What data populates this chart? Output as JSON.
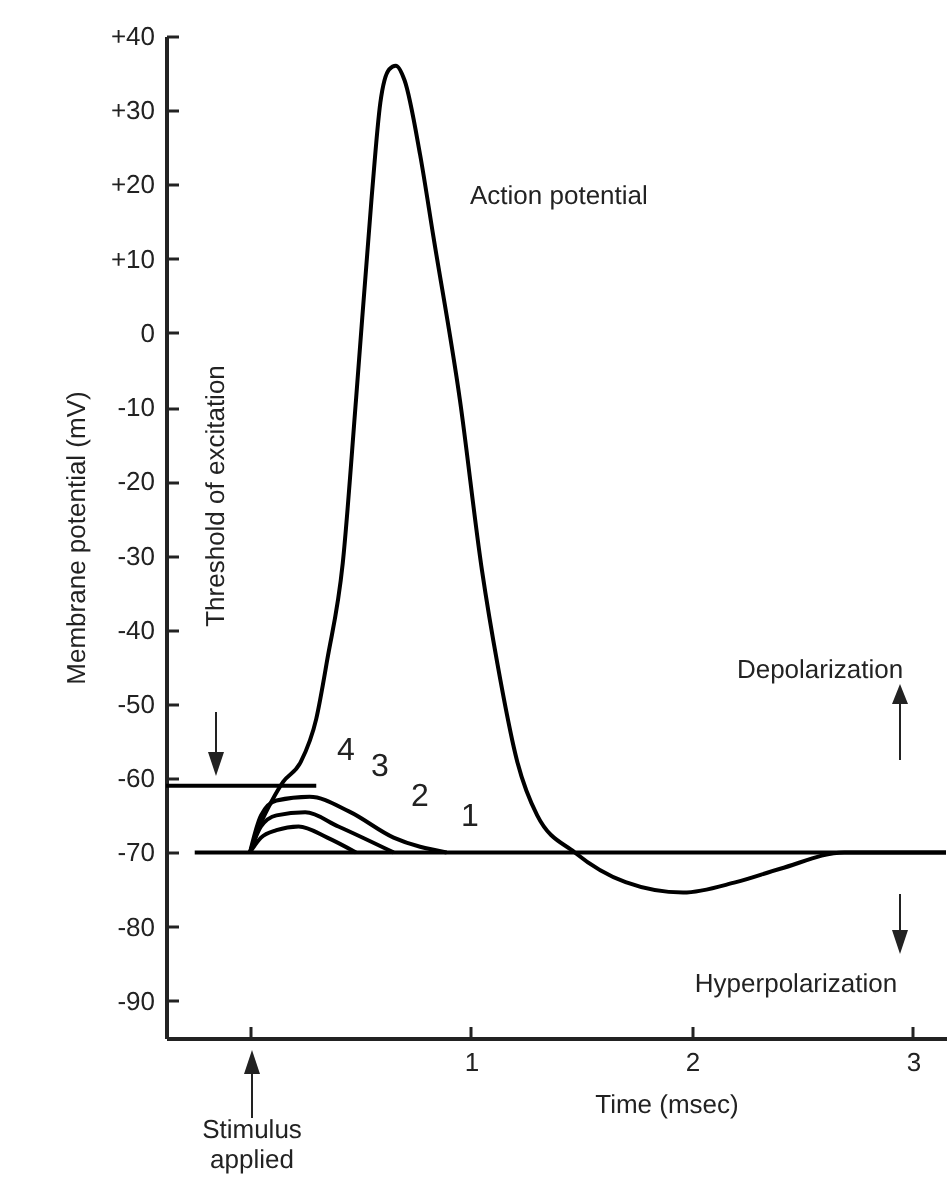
{
  "chart_data": {
    "type": "line",
    "xlabel": "Time (msec)",
    "ylabel": "Membrane potential (mV)",
    "xlim": [
      -0.38,
      3.15
    ],
    "ylim": [
      -95,
      40
    ],
    "xticks": [
      {
        "value": 0,
        "label": null
      },
      1,
      2,
      3
    ],
    "yticks": [
      {
        "value": 40,
        "label": "+40"
      },
      {
        "value": 30,
        "label": "+30"
      },
      {
        "value": 20,
        "label": "+20"
      },
      {
        "value": 10,
        "label": "+10"
      },
      0,
      -10,
      -20,
      -30,
      -40,
      -50,
      -60,
      -70,
      -80,
      -90
    ],
    "grid": false,
    "series": [
      {
        "color": "#000000",
        "x": [
          -0.38,
          0.3
        ],
        "values": [
          -61,
          -61
        ]
      },
      {
        "color": "#000000",
        "x": [
          -0.25,
          3.15
        ],
        "values": [
          -70,
          -70
        ]
      },
      {
        "color": "#000000",
        "x": [
          0,
          0.05,
          0.12,
          0.22,
          0.35,
          0.48
        ],
        "values": [
          -70,
          -68,
          -67,
          -66.5,
          -68,
          -70
        ]
      },
      {
        "color": "#000000",
        "x": [
          0,
          0.05,
          0.12,
          0.25,
          0.4,
          0.65
        ],
        "values": [
          -70,
          -66.5,
          -65,
          -64.6,
          -66.5,
          -70
        ]
      },
      {
        "color": "#000000",
        "x": [
          0,
          0.05,
          0.12,
          0.27,
          0.45,
          0.65,
          0.89
        ],
        "values": [
          -70,
          -65,
          -63,
          -62.5,
          -64.5,
          -68,
          -70
        ]
      },
      {
        "color": "#000000",
        "x": [
          0,
          0.05,
          0.1,
          0.15,
          0.23,
          0.3,
          0.35,
          0.42,
          0.48,
          0.55,
          0.59,
          0.63,
          0.66,
          0.7,
          0.77,
          0.83,
          0.95,
          1.05,
          1.12,
          1.21,
          1.3,
          1.47,
          1.7,
          1.96,
          2.2,
          2.4,
          2.69,
          3.15
        ],
        "values": [
          -70,
          -66,
          -63,
          -60.5,
          -57.8,
          -52,
          -44,
          -31,
          -9,
          18,
          31,
          35.5,
          36,
          34,
          24,
          13,
          -9,
          -32,
          -44.6,
          -57.8,
          -65,
          -70,
          -74,
          -75.4,
          -74,
          -72.2,
          -70,
          -70
        ]
      }
    ],
    "annotations": [
      "Action potential",
      "Threshold of excitation",
      "Depolarization",
      "Hyperpolarization",
      "Stimulus applied",
      "4",
      "3",
      "2",
      "1"
    ]
  }
}
